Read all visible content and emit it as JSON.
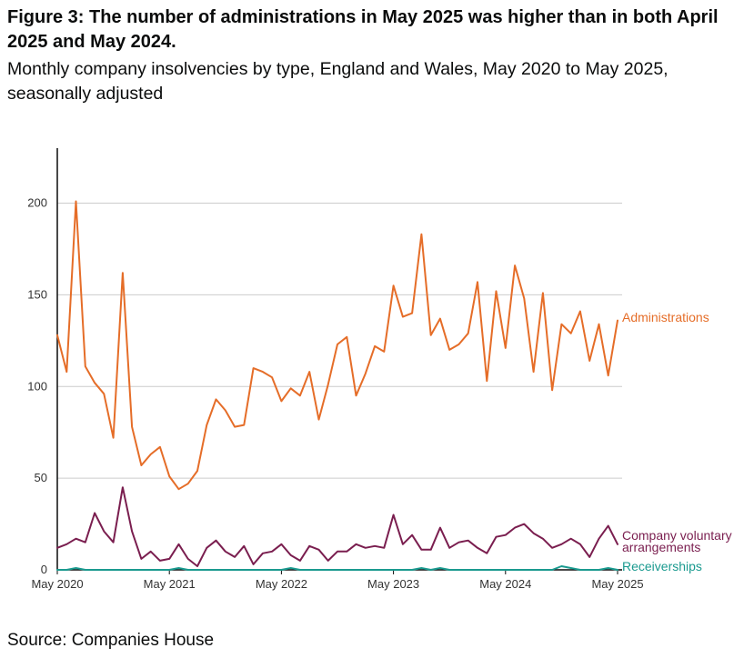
{
  "figure": {
    "title": "Figure 3: The number of administrations in May 2025 was higher than in both April 2025 and May 2024.",
    "subtitle": "Monthly company insolvencies by type, England and Wales, May 2020 to May 2025, seasonally adjusted",
    "source": "Source: Companies House"
  },
  "chart_data": {
    "type": "line",
    "title": "Figure 3: The number of administrations in May 2025 was higher than in both April 2025 and May 2024.",
    "subtitle": "Monthly company insolvencies by type, England and Wales, May 2020 to May 2025, seasonally adjusted",
    "xlabel": "",
    "ylabel": "",
    "x_start": "May 2020",
    "x_end": "May 2025",
    "x_ticks": [
      "May 2020",
      "May 2021",
      "May 2022",
      "May 2023",
      "May 2024",
      "May 2025"
    ],
    "y_ticks": [
      "0",
      "50",
      "100",
      "150",
      "200"
    ],
    "ylim": [
      0,
      230
    ],
    "grid": true,
    "legend": "direct labels at line ends",
    "series": [
      {
        "name": "Administrations",
        "color": "#e56d28",
        "values": [
          128,
          108,
          201,
          111,
          102,
          96,
          72,
          162,
          78,
          57,
          63,
          67,
          51,
          44,
          47,
          54,
          79,
          93,
          87,
          78,
          79,
          110,
          108,
          105,
          92,
          99,
          95,
          108,
          82,
          101,
          123,
          127,
          95,
          107,
          122,
          119,
          155,
          138,
          140,
          183,
          128,
          137,
          120,
          123,
          129,
          157,
          103,
          152,
          121,
          166,
          148,
          108,
          151,
          98,
          134,
          129,
          141,
          114,
          134,
          106,
          136
        ]
      },
      {
        "name": "Company voluntary arrangements",
        "color": "#7a1e4f",
        "values": [
          12,
          14,
          17,
          15,
          31,
          21,
          15,
          45,
          21,
          6,
          10,
          5,
          6,
          14,
          6,
          2,
          12,
          16,
          10,
          7,
          13,
          3,
          9,
          10,
          14,
          8,
          5,
          13,
          11,
          5,
          10,
          10,
          14,
          12,
          13,
          12,
          30,
          14,
          19,
          11,
          11,
          23,
          12,
          15,
          16,
          12,
          9,
          18,
          19,
          23,
          25,
          20,
          17,
          12,
          14,
          17,
          14,
          7,
          17,
          24,
          14
        ]
      },
      {
        "name": "Receiverships",
        "color": "#1a9a8f",
        "values": [
          0,
          0,
          1,
          0,
          0,
          0,
          0,
          0,
          0,
          0,
          0,
          0,
          0,
          1,
          0,
          0,
          0,
          0,
          0,
          0,
          0,
          0,
          0,
          0,
          0,
          1,
          0,
          0,
          0,
          0,
          0,
          0,
          0,
          0,
          0,
          0,
          0,
          0,
          0,
          1,
          0,
          1,
          0,
          0,
          0,
          0,
          0,
          0,
          0,
          0,
          0,
          0,
          0,
          0,
          2,
          1,
          0,
          0,
          0,
          1,
          0
        ]
      }
    ]
  }
}
